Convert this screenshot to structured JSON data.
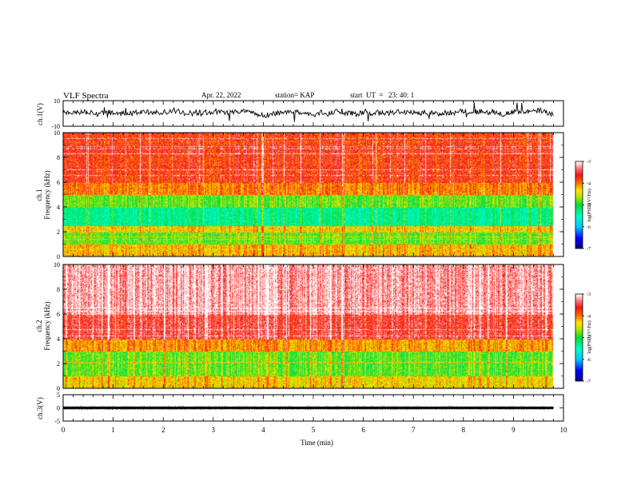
{
  "header": {
    "title": "VLF Spectra",
    "date": "Apr. 22, 2022",
    "station": "station= KAP",
    "start": "start  UT  =   23: 40: 1"
  },
  "chart_data": [
    {
      "type": "line",
      "panel": "ch1-waveform",
      "ylabel": "ch.1(V)",
      "ylim": [
        -10,
        10
      ],
      "yticks": [
        "10",
        "-10"
      ],
      "xlim": [
        0,
        10
      ],
      "approx_level": 0.5,
      "approx_amplitude": 5,
      "data_end_min": 9.8
    },
    {
      "type": "heatmap",
      "panel": "ch1-spectrogram",
      "ylabel": "ch.1\nFrequency (kHz)",
      "ylim": [
        0,
        10
      ],
      "yticks": [
        "0",
        "2",
        "4",
        "6",
        "8",
        "10"
      ],
      "xlim": [
        0,
        10
      ],
      "data_end_min": 9.8,
      "colorbar": {
        "label": "log(PSD)(V²/Hz)",
        "range": [
          -7,
          -3
        ],
        "ticks": [
          "-3",
          "-4",
          "-5",
          "-6",
          "-7"
        ]
      },
      "bands_log_psd": [
        {
          "f_from": 0,
          "f_to": 1,
          "value": -4.2
        },
        {
          "f_from": 1,
          "f_to": 2,
          "value": -4.8
        },
        {
          "f_from": 2,
          "f_to": 2.5,
          "value": -4.3
        },
        {
          "f_from": 2.5,
          "f_to": 4,
          "value": -5.3
        },
        {
          "f_from": 4,
          "f_to": 5,
          "value": -4.8
        },
        {
          "f_from": 5,
          "f_to": 6,
          "value": -4.0
        },
        {
          "f_from": 6,
          "f_to": 10,
          "value": -3.7
        }
      ]
    },
    {
      "type": "heatmap",
      "panel": "ch2-spectrogram",
      "ylabel": "ch.2\nFrequency (kHz)",
      "ylim": [
        0,
        10
      ],
      "yticks": [
        "0",
        "2",
        "4",
        "6",
        "8",
        "10"
      ],
      "xlim": [
        0,
        10
      ],
      "data_end_min": 9.8,
      "colorbar": {
        "label": "log(PSD)(V²/Hz)",
        "range": [
          -7,
          -3
        ],
        "ticks": [
          "-3",
          "-4",
          "-5",
          "-6",
          "-7"
        ]
      },
      "bands_log_psd": [
        {
          "f_from": 0,
          "f_to": 1,
          "value": -4.3
        },
        {
          "f_from": 1,
          "f_to": 3,
          "value": -4.8
        },
        {
          "f_from": 3,
          "f_to": 4,
          "value": -4.1
        },
        {
          "f_from": 4,
          "f_to": 6,
          "value": -3.5
        },
        {
          "f_from": 6,
          "f_to": 10,
          "value": -3.2
        }
      ]
    },
    {
      "type": "line",
      "panel": "ch3-waveform",
      "ylabel": "ch.3(V)",
      "ylim": [
        -5,
        5
      ],
      "yticks": [
        "5",
        "0",
        "-5"
      ],
      "xlim": [
        0,
        10
      ],
      "xticks": [
        "0",
        "1",
        "2",
        "3",
        "4",
        "5",
        "6",
        "7",
        "8",
        "9",
        "10"
      ],
      "xlabel": "Time (min)",
      "approx_level": 0,
      "approx_amplitude": 0.4,
      "data_end_min": 9.8
    }
  ]
}
